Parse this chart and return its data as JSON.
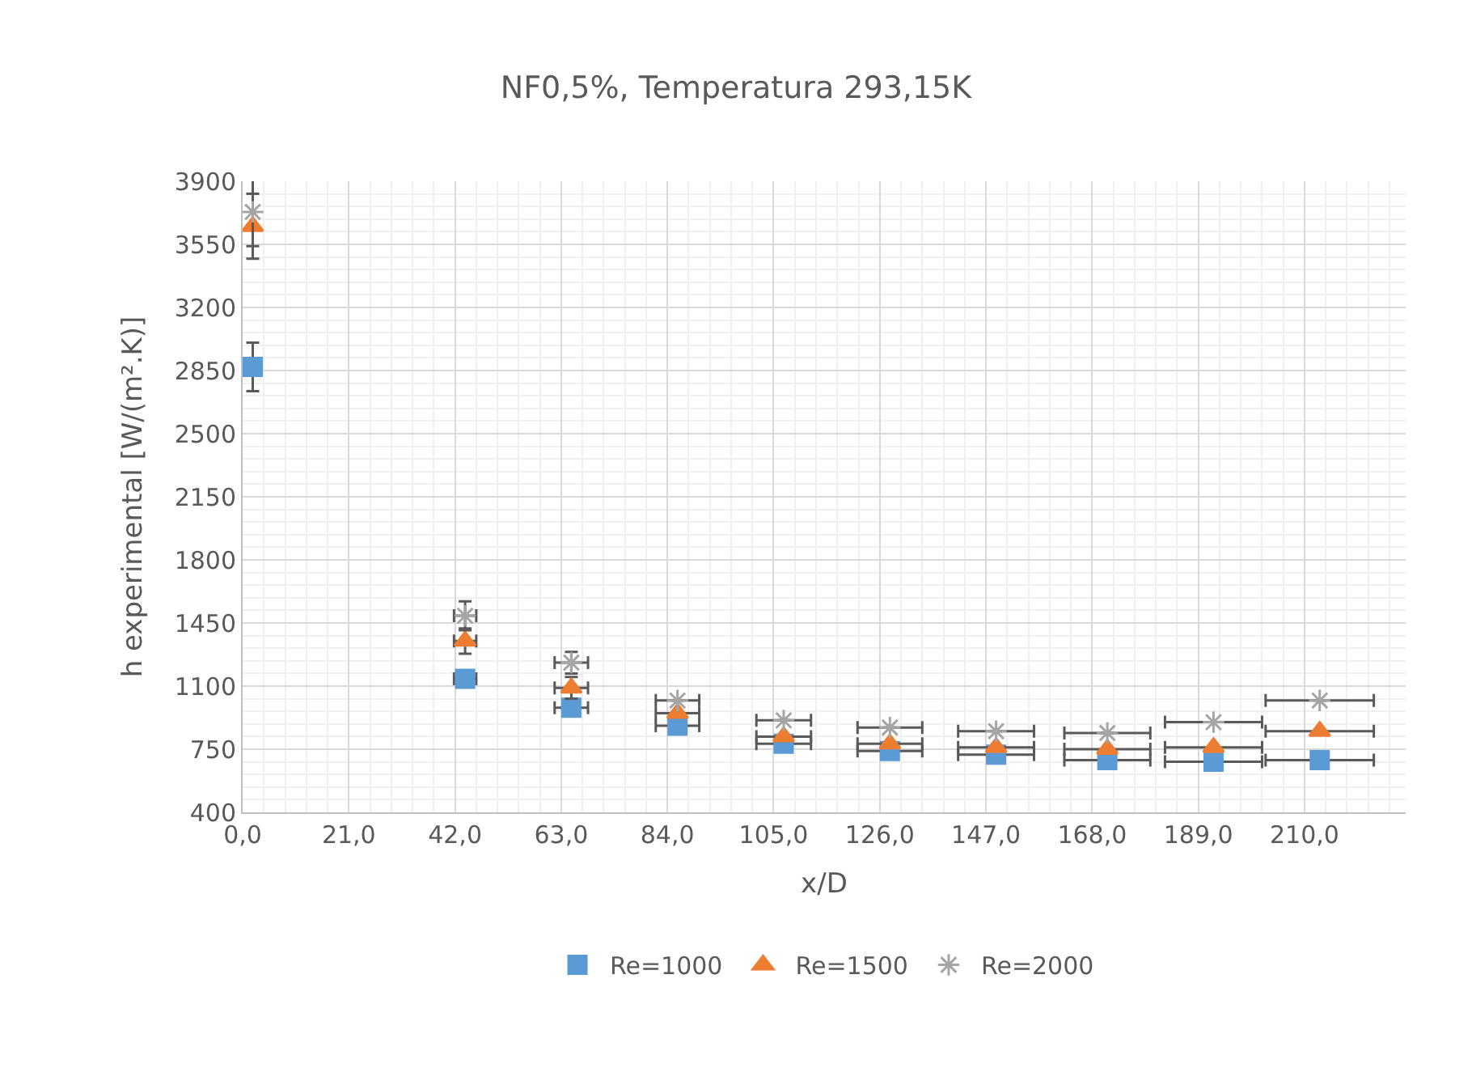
{
  "chart_data": {
    "type": "scatter",
    "title": "NF0,5%, Temperatura 293,15K",
    "xlabel": "x/D",
    "ylabel": "h experimental [W/(m².K)]",
    "x": [
      2,
      44,
      65,
      86,
      107,
      128,
      149,
      171,
      192,
      213
    ],
    "series": [
      {
        "name": "Re=1000",
        "color": "#5b9bd5",
        "marker": "square",
        "values": [
          2870,
          1140,
          980,
          880,
          780,
          740,
          720,
          690,
          680,
          690
        ],
        "errors": [
          135,
          null,
          null,
          null,
          null,
          null,
          null,
          null,
          null,
          null
        ],
        "xerrors": [
          null,
          2.2,
          3.3,
          4.3,
          5.4,
          6.4,
          7.5,
          8.5,
          9.6,
          10.7
        ]
      },
      {
        "name": "Re=1500",
        "color": "#ed7d31",
        "marker": "triangle",
        "values": [
          3650,
          1350,
          1090,
          950,
          820,
          780,
          760,
          750,
          760,
          850
        ],
        "errors": [
          180,
          70,
          60,
          null,
          null,
          null,
          null,
          null,
          null,
          null
        ],
        "xerrors": [
          null,
          2.2,
          3.3,
          4.3,
          5.4,
          6.4,
          7.5,
          8.5,
          9.6,
          10.7
        ]
      },
      {
        "name": "Re=2000",
        "color": "#a5a5a5",
        "marker": "cross",
        "values": [
          3730,
          1490,
          1230,
          1020,
          910,
          870,
          850,
          840,
          900,
          1020
        ],
        "errors": [
          190,
          80,
          60,
          null,
          null,
          null,
          null,
          null,
          null,
          null
        ],
        "xerrors": [
          null,
          2.2,
          3.3,
          4.3,
          5.4,
          6.4,
          7.5,
          8.5,
          9.6,
          10.7
        ]
      }
    ],
    "xlim": [
      0,
      230
    ],
    "xticks": [
      {
        "value": 0,
        "label": "0,0"
      },
      {
        "value": 21,
        "label": "21,0"
      },
      {
        "value": 42,
        "label": "42,0"
      },
      {
        "value": 63,
        "label": "63,0"
      },
      {
        "value": 84,
        "label": "84,0"
      },
      {
        "value": 105,
        "label": "105,0"
      },
      {
        "value": 126,
        "label": "126,0"
      },
      {
        "value": 147,
        "label": "147,0"
      },
      {
        "value": 168,
        "label": "168,0"
      },
      {
        "value": 189,
        "label": "189,0"
      },
      {
        "value": 210,
        "label": "210,0"
      }
    ],
    "ylim": [
      400,
      3900
    ],
    "yticks": [
      400,
      750,
      1100,
      1450,
      1800,
      2150,
      2500,
      2850,
      3200,
      3550,
      3900
    ],
    "grid": true,
    "legend": "bottom"
  }
}
